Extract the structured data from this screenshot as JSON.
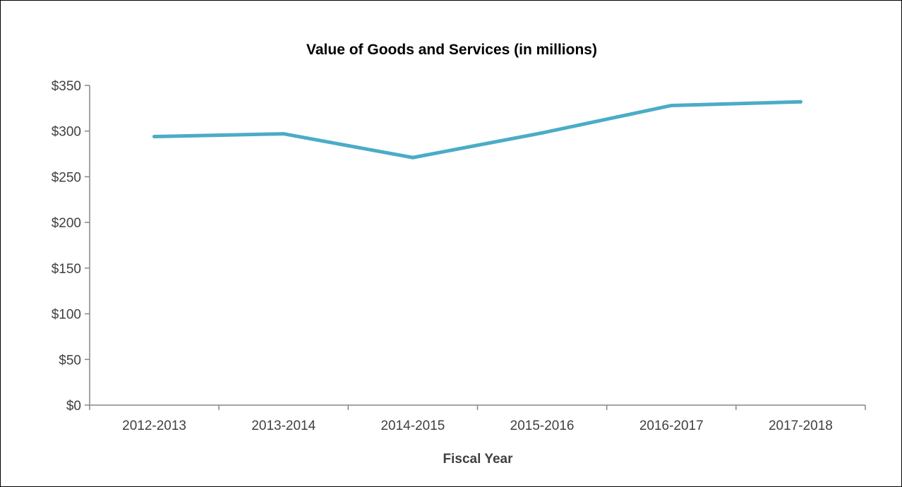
{
  "chart_data": {
    "type": "line",
    "title": "Value of Goods and Services (in millions)",
    "xlabel": "Fiscal Year",
    "ylabel": "",
    "categories": [
      "2012-2013",
      "2013-2014",
      "2014-2015",
      "2015-2016",
      "2016-2017",
      "2017-2018"
    ],
    "series": [
      {
        "values": [
          294,
          297,
          271,
          298,
          328,
          332
        ],
        "color": "#4BACC6"
      }
    ],
    "ylim": [
      0,
      350
    ],
    "yticks": [
      0,
      50,
      100,
      150,
      200,
      250,
      300,
      350
    ],
    "ytick_labels": [
      "$0",
      "$50",
      "$100",
      "$150",
      "$200",
      "$250",
      "$300",
      "$350"
    ],
    "grid": false,
    "legend": "none"
  }
}
